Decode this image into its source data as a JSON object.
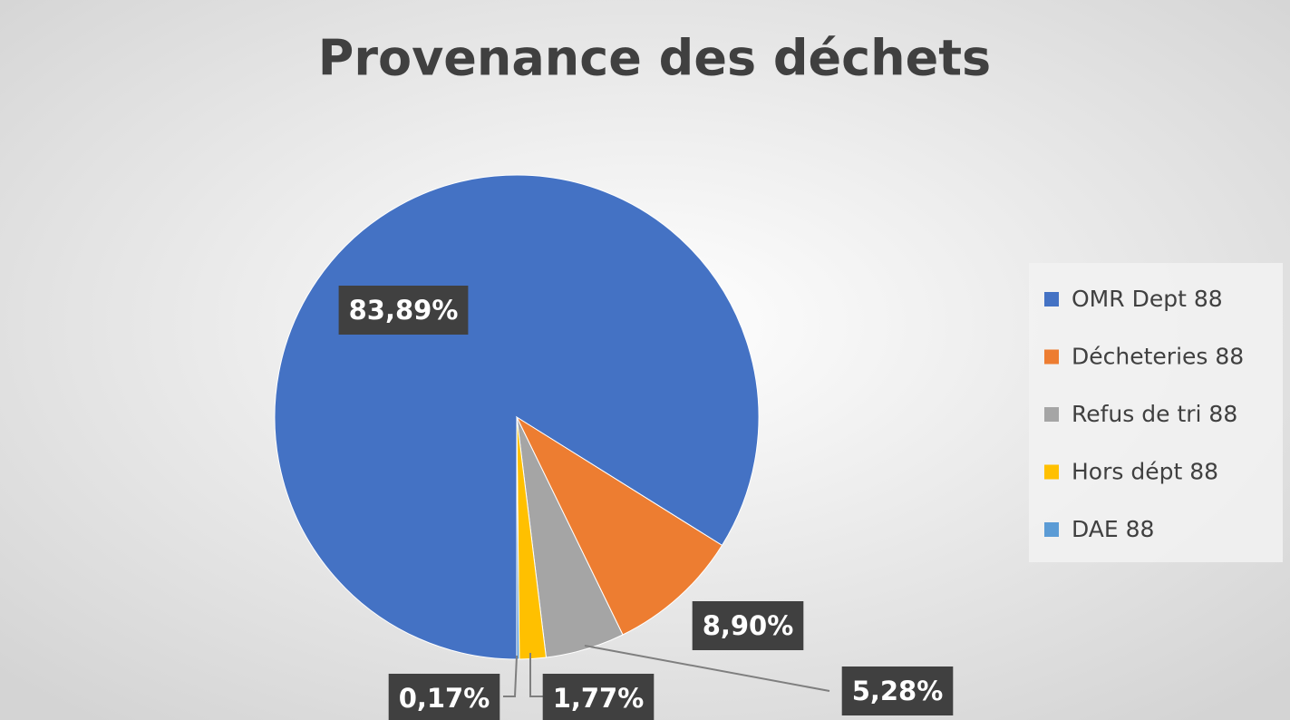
{
  "chart_data": {
    "type": "pie",
    "title": "Provenance des déchets",
    "categories": [
      "OMR Dept 88",
      "Décheteries 88",
      "Refus de tri 88",
      "Hors dépt 88",
      "DAE 88"
    ],
    "values": [
      83.89,
      8.9,
      5.28,
      1.77,
      0.17
    ],
    "value_labels": [
      "83,89%",
      "8,90%",
      "5,28%",
      "1,77%",
      "0,17%"
    ],
    "colors": [
      "#4472c4",
      "#ed7d31",
      "#a5a5a5",
      "#ffc000",
      "#5b9bd5"
    ],
    "legend": "right"
  }
}
